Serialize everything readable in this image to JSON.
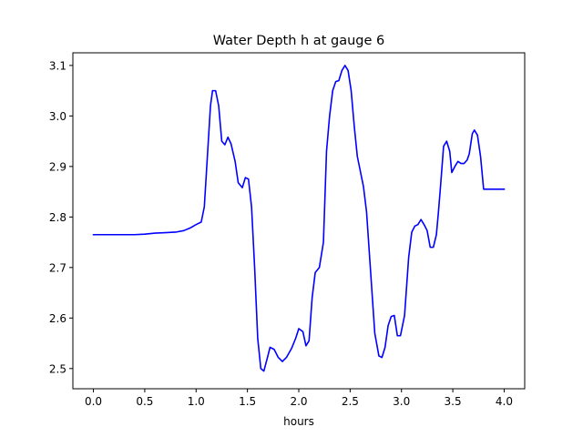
{
  "chart_data": {
    "type": "line",
    "title": "Water Depth h at gauge 6",
    "xlabel": "hours",
    "ylabel": "",
    "xlim": [
      -0.2,
      4.2
    ],
    "ylim": [
      2.46,
      3.125
    ],
    "grid": false,
    "xticks": [
      {
        "value": 0.0,
        "label": "0.0"
      },
      {
        "value": 0.5,
        "label": "0.5"
      },
      {
        "value": 1.0,
        "label": "1.0"
      },
      {
        "value": 1.5,
        "label": "1.5"
      },
      {
        "value": 2.0,
        "label": "2.0"
      },
      {
        "value": 2.5,
        "label": "2.5"
      },
      {
        "value": 3.0,
        "label": "3.0"
      },
      {
        "value": 3.5,
        "label": "3.5"
      },
      {
        "value": 4.0,
        "label": "4.0"
      }
    ],
    "yticks": [
      {
        "value": 2.5,
        "label": "2.5"
      },
      {
        "value": 2.6,
        "label": "2.6"
      },
      {
        "value": 2.7,
        "label": "2.7"
      },
      {
        "value": 2.8,
        "label": "2.8"
      },
      {
        "value": 2.9,
        "label": "2.9"
      },
      {
        "value": 3.0,
        "label": "3.0"
      },
      {
        "value": 3.1,
        "label": "3.1"
      }
    ],
    "series": [
      {
        "color": "#0000ff",
        "x": [
          0.0,
          0.2,
          0.4,
          0.5,
          0.6,
          0.7,
          0.8,
          0.88,
          0.94,
          1.0,
          1.05,
          1.08,
          1.11,
          1.14,
          1.16,
          1.19,
          1.22,
          1.25,
          1.28,
          1.31,
          1.34,
          1.38,
          1.41,
          1.45,
          1.48,
          1.51,
          1.54,
          1.57,
          1.6,
          1.63,
          1.66,
          1.69,
          1.72,
          1.76,
          1.8,
          1.84,
          1.88,
          1.93,
          1.97,
          2.0,
          2.04,
          2.07,
          2.1,
          2.13,
          2.16,
          2.2,
          2.24,
          2.27,
          2.3,
          2.33,
          2.36,
          2.39,
          2.42,
          2.45,
          2.48,
          2.51,
          2.54,
          2.57,
          2.6,
          2.63,
          2.66,
          2.7,
          2.74,
          2.78,
          2.81,
          2.84,
          2.87,
          2.9,
          2.93,
          2.96,
          2.99,
          3.03,
          3.07,
          3.1,
          3.13,
          3.16,
          3.19,
          3.22,
          3.25,
          3.28,
          3.31,
          3.34,
          3.36,
          3.38,
          3.41,
          3.44,
          3.47,
          3.49,
          3.52,
          3.55,
          3.58,
          3.61,
          3.64,
          3.66,
          3.69,
          3.71,
          3.74,
          3.77,
          3.8,
          3.83,
          3.86,
          3.89,
          3.92,
          3.95,
          3.98,
          4.0
        ],
        "y": [
          2.765,
          2.765,
          2.765,
          2.766,
          2.768,
          2.769,
          2.77,
          2.773,
          2.778,
          2.785,
          2.79,
          2.82,
          2.92,
          3.02,
          3.05,
          3.05,
          3.02,
          2.95,
          2.943,
          2.958,
          2.945,
          2.91,
          2.868,
          2.858,
          2.878,
          2.875,
          2.82,
          2.7,
          2.56,
          2.5,
          2.495,
          2.518,
          2.542,
          2.538,
          2.522,
          2.514,
          2.522,
          2.54,
          2.56,
          2.579,
          2.573,
          2.545,
          2.555,
          2.64,
          2.69,
          2.7,
          2.75,
          2.93,
          3.0,
          3.05,
          3.068,
          3.07,
          3.09,
          3.1,
          3.09,
          3.05,
          2.98,
          2.92,
          2.89,
          2.86,
          2.81,
          2.69,
          2.57,
          2.525,
          2.522,
          2.542,
          2.585,
          2.603,
          2.605,
          2.565,
          2.565,
          2.605,
          2.72,
          2.77,
          2.782,
          2.785,
          2.795,
          2.785,
          2.773,
          2.74,
          2.74,
          2.765,
          2.81,
          2.86,
          2.94,
          2.95,
          2.93,
          2.888,
          2.9,
          2.91,
          2.906,
          2.906,
          2.913,
          2.925,
          2.965,
          2.972,
          2.962,
          2.92,
          2.855,
          2.855,
          2.855,
          2.855,
          2.855,
          2.855,
          2.855,
          2.855
        ]
      }
    ]
  }
}
